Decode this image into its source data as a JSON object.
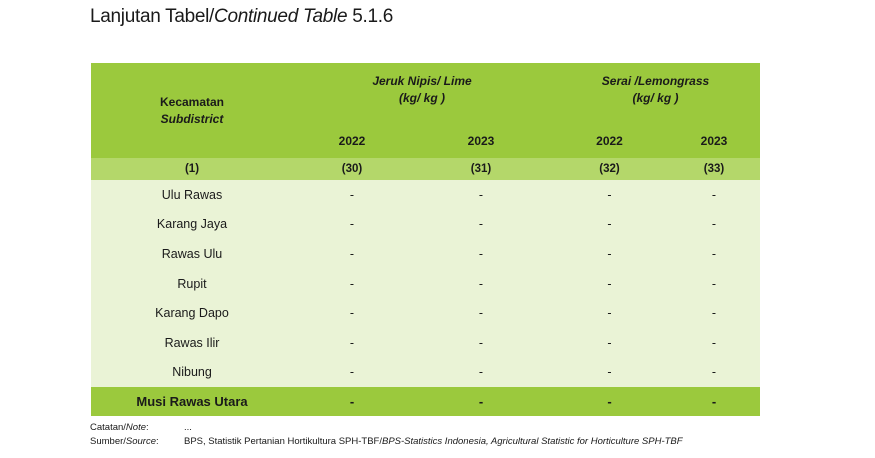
{
  "title": {
    "prefix": "Lanjutan Tabel/",
    "italic": "Continued Table",
    "number": "5.1.6"
  },
  "header": {
    "kecamatan": "Kecamatan",
    "subdistrict": "Subdistrict",
    "group1_line1": "Jeruk Nipis/ Lime",
    "group1_line2": "(kg/ kg )",
    "group2_line1": "Serai /Lemongrass",
    "group2_line2": "(kg/ kg )",
    "years": [
      "2022",
      "2023",
      "2022",
      "2023"
    ]
  },
  "column_numbers": [
    "(1)",
    "(30)",
    "(31)",
    "(32)",
    "(33)"
  ],
  "rows": [
    {
      "name": "Ulu Rawas",
      "values": [
        "-",
        "-",
        "-",
        "-"
      ]
    },
    {
      "name": "Karang Jaya",
      "values": [
        "-",
        "-",
        "-",
        "-"
      ]
    },
    {
      "name": "Rawas Ulu",
      "values": [
        "-",
        "-",
        "-",
        "-"
      ]
    },
    {
      "name": "Rupit",
      "values": [
        "-",
        "-",
        "-",
        "-"
      ]
    },
    {
      "name": "Karang Dapo",
      "values": [
        "-",
        "-",
        "-",
        "-"
      ]
    },
    {
      "name": "Rawas Ilir",
      "values": [
        "-",
        "-",
        "-",
        "-"
      ]
    },
    {
      "name": "Nibung",
      "values": [
        "-",
        "-",
        "-",
        "-"
      ]
    }
  ],
  "total": {
    "name": "Musi Rawas Utara",
    "values": [
      "-",
      "-",
      "-",
      "-"
    ]
  },
  "notes": {
    "note_label_plain": "Catatan/",
    "note_label_italic": "Note",
    "note_value": "...",
    "source_label_plain": "Sumber/",
    "source_label_italic": "Source",
    "source_value_plain": "BPS, Statistik Pertanian Hortikultura SPH-TBF/",
    "source_value_italic": "BPS-Statistics Indonesia, Agricultural Statistic for Horticulture SPH-TBF"
  }
}
